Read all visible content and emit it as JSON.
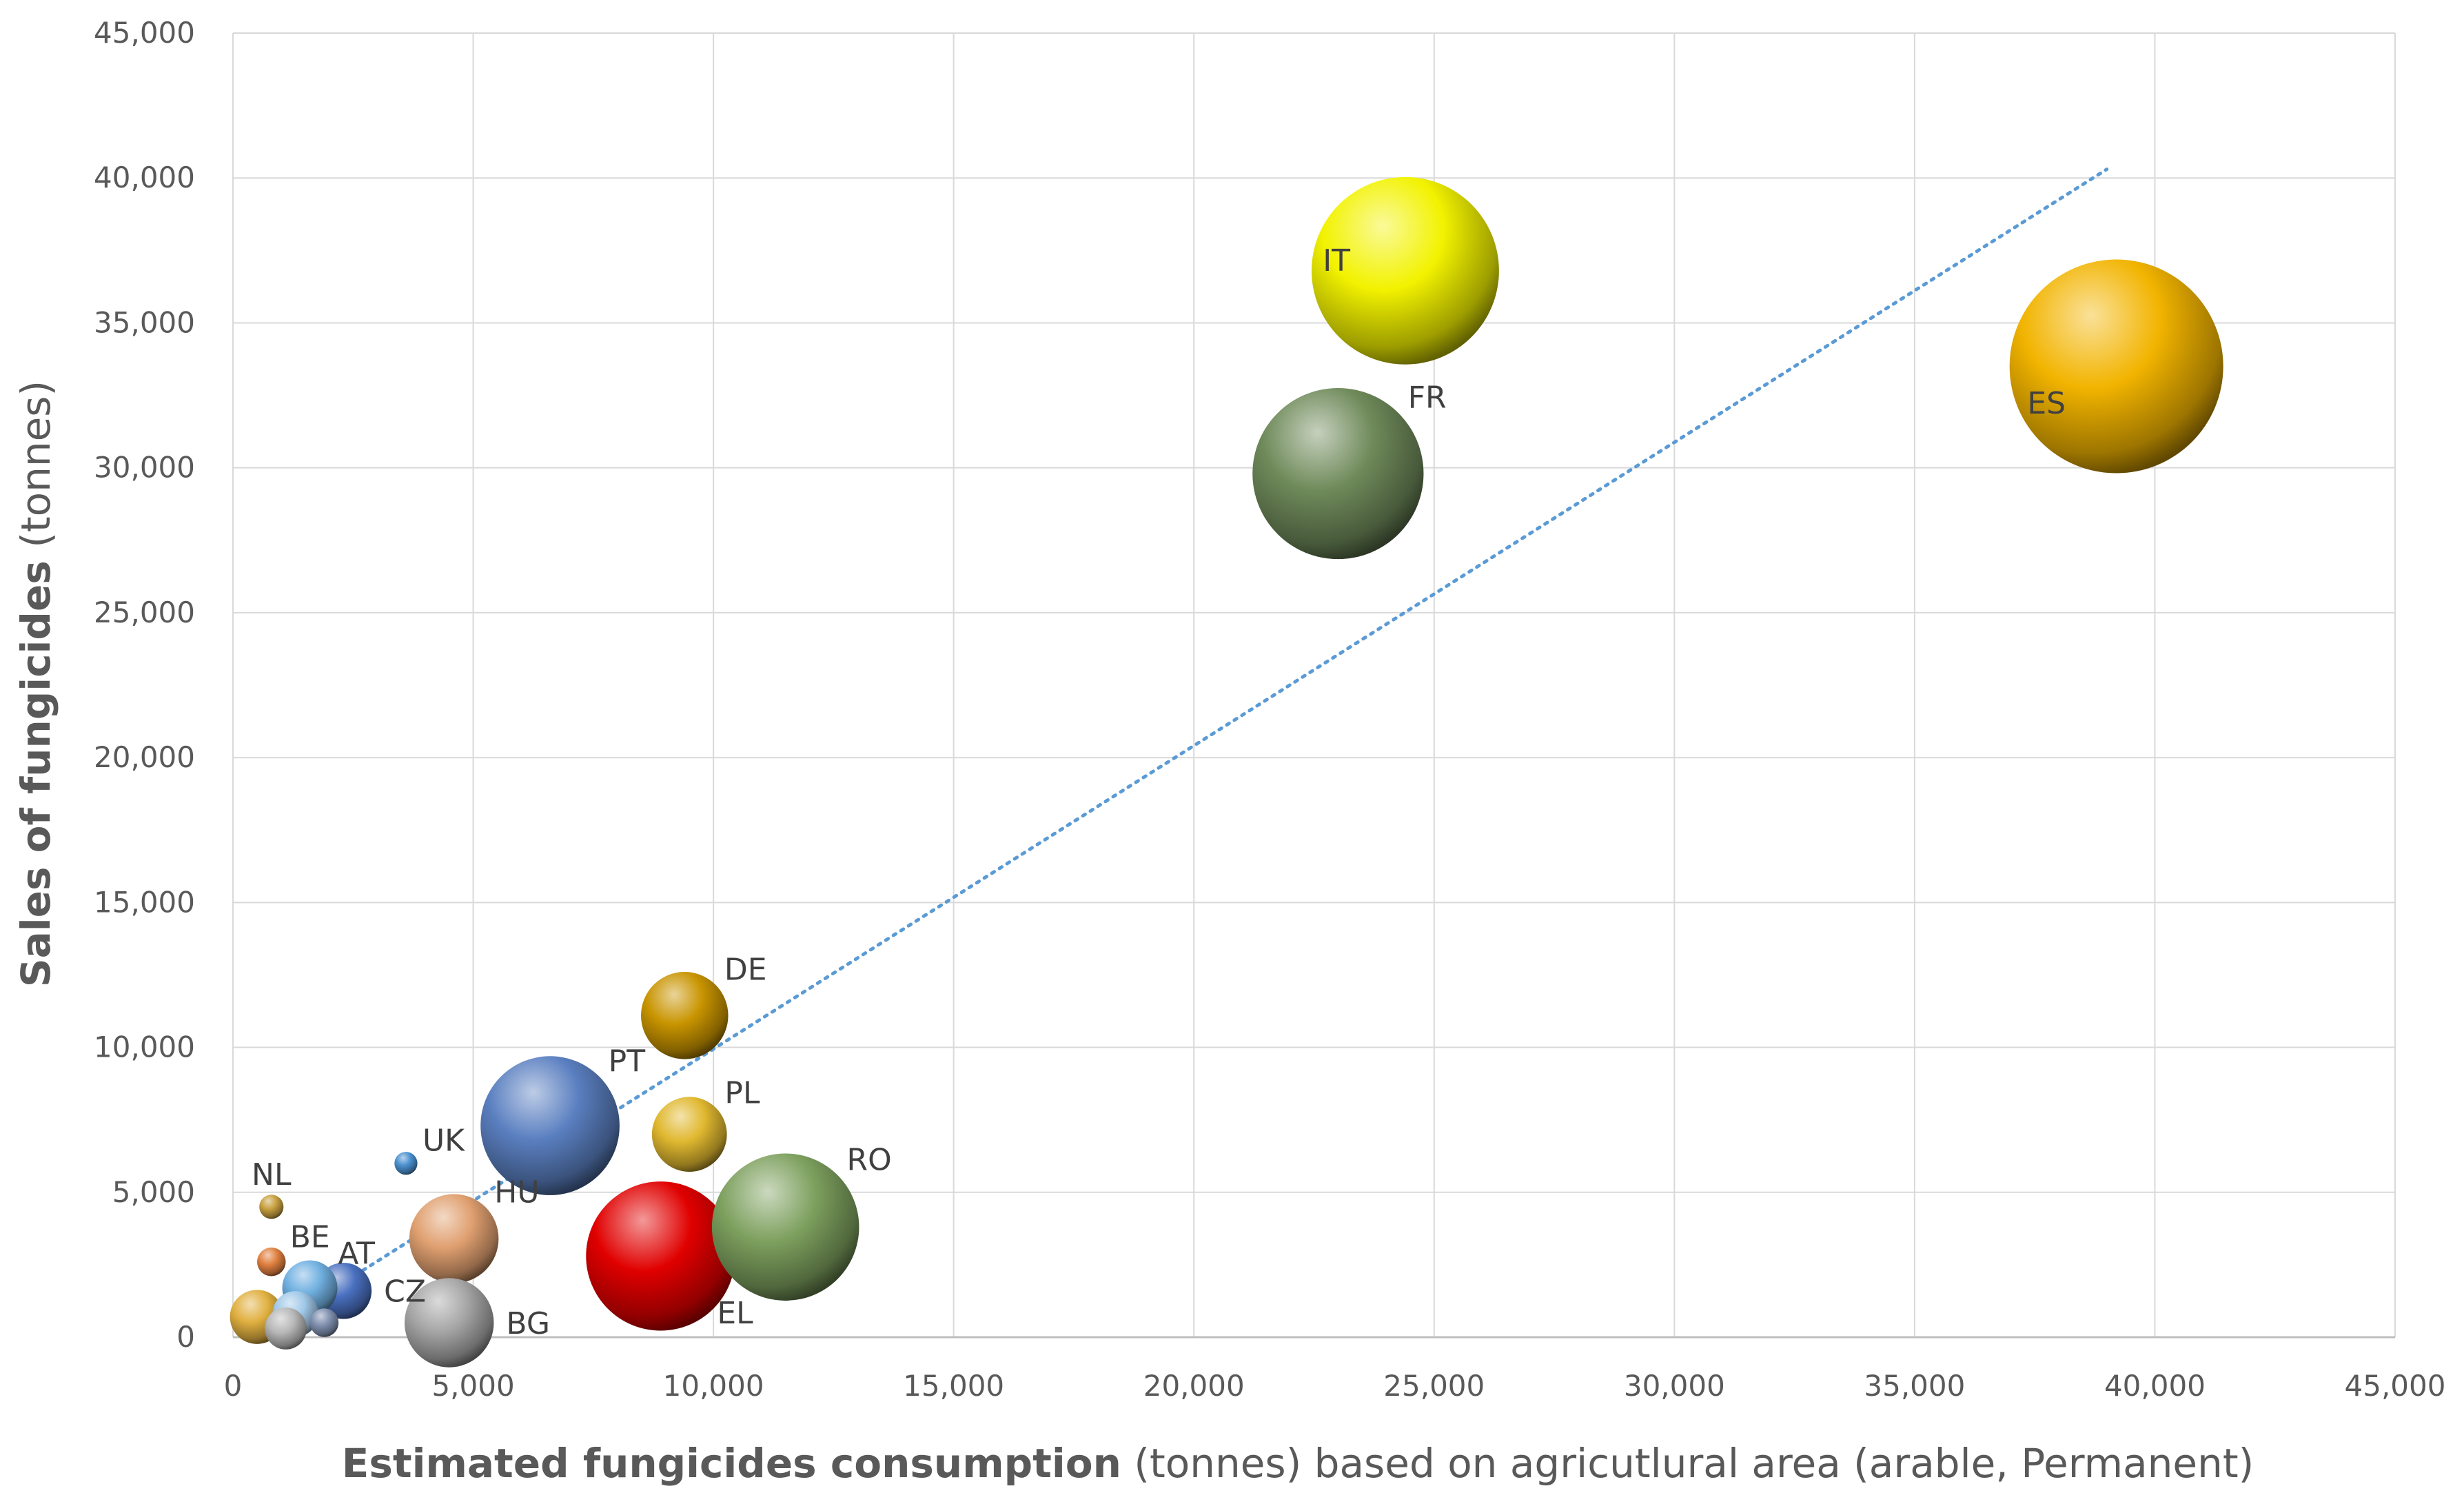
{
  "chart_data": {
    "type": "bubble",
    "title": "",
    "xlabel_bold": "Estimated fungicides consumption",
    "xlabel_rest": " (tonnes) based on agricutlural area (arable, Permanent)",
    "ylabel_bold": "Sales of fungicides",
    "ylabel_rest": " (tonnes)",
    "xlim": [
      0,
      45000
    ],
    "ylim": [
      0,
      45000
    ],
    "x_ticks": [
      0,
      5000,
      10000,
      15000,
      20000,
      25000,
      30000,
      35000,
      40000,
      45000
    ],
    "y_ticks": [
      0,
      5000,
      10000,
      15000,
      20000,
      25000,
      30000,
      35000,
      40000,
      45000
    ],
    "x_tick_labels": [
      "0",
      "5,000",
      "10,000",
      "15,000",
      "20,000",
      "25,000",
      "30,000",
      "35,000",
      "40,000",
      "45,000"
    ],
    "y_tick_labels": [
      "0",
      "5,000",
      "10,000",
      "15,000",
      "20,000",
      "25,000",
      "30,000",
      "35,000",
      "40,000",
      "45,000"
    ],
    "grid": true,
    "legend": "none",
    "trendline": {
      "style": "dotted",
      "color": "#5b9bd5",
      "x": [
        500,
        39000
      ],
      "y": [
        0,
        40300
      ]
    },
    "points": [
      {
        "label": "ES",
        "x": 39200,
        "y": 33500,
        "size": 39000,
        "color": "#f2b400",
        "label_pos": "bottom-left"
      },
      {
        "label": "IT",
        "x": 24400,
        "y": 36800,
        "size": 30000,
        "color": "#f2f200",
        "label_pos": "top-left"
      },
      {
        "label": "FR",
        "x": 23000,
        "y": 29800,
        "size": 25000,
        "color": "#6f8a5a",
        "label_pos": "top-right"
      },
      {
        "label": "RO",
        "x": 11500,
        "y": 3800,
        "size": 18500,
        "color": "#7da05e",
        "label_pos": "top-right"
      },
      {
        "label": "EL",
        "x": 8900,
        "y": 2800,
        "size": 19000,
        "color": "#e00000",
        "label_pos": "bottom-right"
      },
      {
        "label": "PT",
        "x": 6600,
        "y": 7300,
        "size": 16500,
        "color": "#5a7fc0",
        "label_pos": "top-right"
      },
      {
        "label": "DE",
        "x": 9400,
        "y": 11100,
        "size": 6500,
        "color": "#c89400",
        "label_pos": "top-right"
      },
      {
        "label": "PL",
        "x": 9500,
        "y": 7000,
        "size": 4800,
        "color": "#e0b830",
        "label_pos": "top-right"
      },
      {
        "label": "HU",
        "x": 4600,
        "y": 3400,
        "size": 6800,
        "color": "#e0a070",
        "label_pos": "top-right"
      },
      {
        "label": "BG",
        "x": 4500,
        "y": 500,
        "size": 6800,
        "color": "#a6a6a6",
        "label_pos": "right"
      },
      {
        "label": "UK",
        "x": 3600,
        "y": 6000,
        "size": 450,
        "color": "#4a90d0",
        "label_pos": "top-right"
      },
      {
        "label": "CZ",
        "x": 2300,
        "y": 1600,
        "size": 2700,
        "color": "#4a70c0",
        "label_pos": "right"
      },
      {
        "label": "AT",
        "x": 1600,
        "y": 1700,
        "size": 2600,
        "color": "#70b0e0",
        "label_pos": "top-right"
      },
      {
        "label": "NL",
        "x": 800,
        "y": 4500,
        "size": 500,
        "color": "#c8a040",
        "label_pos": "top"
      },
      {
        "label": "BE",
        "x": 800,
        "y": 2600,
        "size": 700,
        "color": "#e08040",
        "label_pos": "top-right"
      },
      {
        "label": "",
        "x": 500,
        "y": 700,
        "size": 2500,
        "color": "#e0b040",
        "label_pos": "none"
      },
      {
        "label": "",
        "x": 1300,
        "y": 800,
        "size": 1800,
        "color": "#a0c8e8",
        "label_pos": "none"
      },
      {
        "label": "",
        "x": 1900,
        "y": 500,
        "size": 700,
        "color": "#8090b0",
        "label_pos": "none"
      },
      {
        "label": "",
        "x": 1100,
        "y": 300,
        "size": 1500,
        "color": "#b8b8b8",
        "label_pos": "none"
      }
    ]
  }
}
